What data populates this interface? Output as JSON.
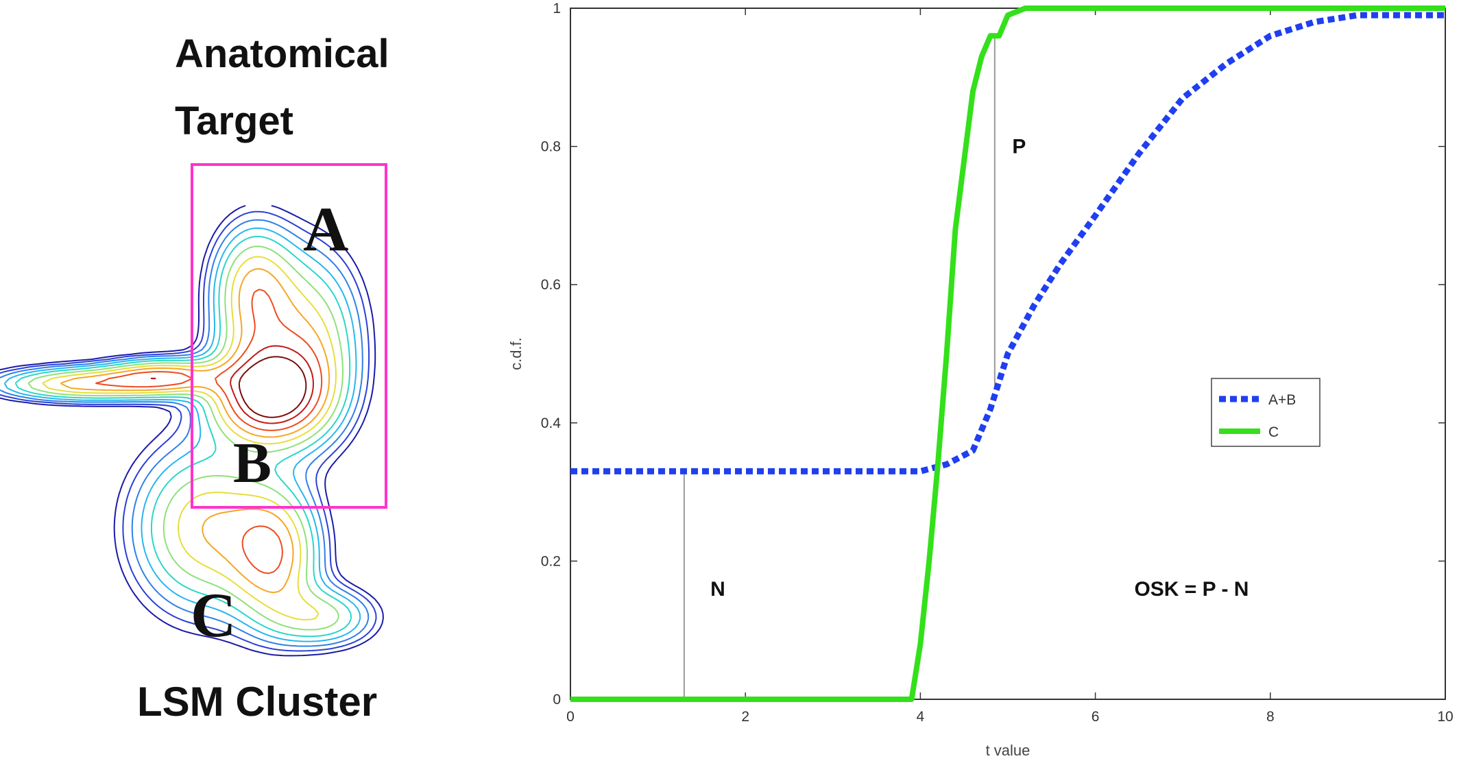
{
  "figure": {
    "panel_title_line1": "Anatomical",
    "panel_title_line2": "Target",
    "region_labels": [
      "A",
      "B",
      "C"
    ],
    "cluster_label": "LSM Cluster",
    "box_color": "#ff33cc",
    "contour_colors": [
      "#1a1aa8",
      "#2a3fd6",
      "#2f7fe8",
      "#26b6ee",
      "#2ad6c8",
      "#8fe07a",
      "#e6de3a",
      "#f5a623",
      "#ee4a1e",
      "#c01818",
      "#7a0c0c"
    ]
  },
  "chart_data": {
    "type": "line",
    "xlabel": "t value",
    "ylabel": "c.d.f.",
    "xlim": [
      0,
      10
    ],
    "ylim": [
      0,
      1
    ],
    "x_ticks": [
      0,
      2,
      4,
      6,
      8,
      10
    ],
    "y_ticks": [
      0,
      0.2,
      0.4,
      0.6,
      0.8,
      1
    ],
    "x_tick_labels": [
      "0",
      "2",
      "4",
      "6",
      "8",
      "10"
    ],
    "y_tick_labels": [
      "0",
      "0.2",
      "0.4",
      "0.6",
      "0.8",
      "1"
    ],
    "legend_placement": "right-middle",
    "grid": false,
    "series": [
      {
        "name": "A+B",
        "style": "dotted",
        "color": "#1f3ff0",
        "x": [
          0,
          1,
          2,
          3,
          4,
          4.3,
          4.6,
          4.8,
          5.0,
          5.3,
          5.6,
          6.0,
          6.5,
          7.0,
          7.5,
          8.0,
          8.5,
          9.0,
          9.5,
          10
        ],
        "y": [
          0.33,
          0.33,
          0.33,
          0.33,
          0.33,
          0.34,
          0.36,
          0.42,
          0.5,
          0.57,
          0.63,
          0.7,
          0.79,
          0.87,
          0.92,
          0.96,
          0.98,
          0.99,
          0.99,
          0.99
        ]
      },
      {
        "name": "C",
        "style": "solid",
        "color": "#33e01a",
        "x": [
          0,
          1,
          2,
          3,
          3.9,
          4.0,
          4.1,
          4.2,
          4.3,
          4.4,
          4.5,
          4.6,
          4.7,
          4.8,
          4.9,
          5.0,
          5.2,
          5.6,
          6,
          7,
          8,
          9,
          10
        ],
        "y": [
          0,
          0,
          0,
          0,
          0,
          0.08,
          0.2,
          0.34,
          0.5,
          0.68,
          0.78,
          0.88,
          0.93,
          0.96,
          0.96,
          0.99,
          1,
          1,
          1,
          1,
          1,
          1,
          1
        ]
      }
    ],
    "annotations": [
      {
        "text": "N",
        "x": 1.6,
        "y": 0.15
      },
      {
        "text": "P",
        "x": 5.05,
        "y": 0.79
      },
      {
        "text": "OSK = P - N",
        "x": 7.1,
        "y": 0.15
      }
    ],
    "markers": [
      {
        "x": 1.3,
        "y1": 0,
        "y2": 0.33,
        "label": "N"
      },
      {
        "x": 4.85,
        "y1": 0.45,
        "y2": 0.96,
        "label": "P"
      }
    ]
  }
}
